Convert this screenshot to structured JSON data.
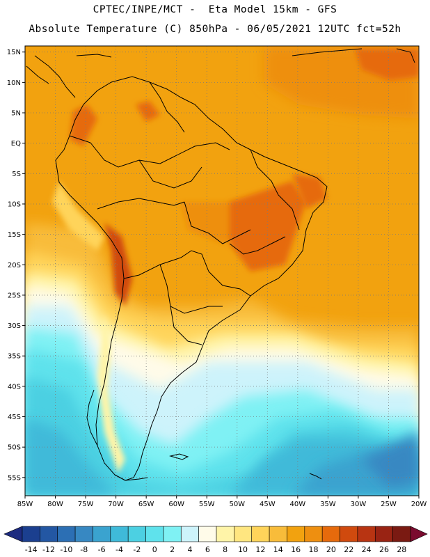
{
  "header": {
    "line1": "CPTEC/INPE/MCT -  Eta Model 15km - GFS",
    "line2": "Absolute Temperature (C) 850hPa - 06/05/2021 12UTC fct=52h"
  },
  "map": {
    "lat_labels": [
      "15N",
      "10N",
      "5N",
      "EQ",
      "5S",
      "10S",
      "15S",
      "20S",
      "25S",
      "30S",
      "35S",
      "40S",
      "45S",
      "50S",
      "55S"
    ],
    "lon_labels": [
      "85W",
      "80W",
      "75W",
      "70W",
      "65W",
      "60W",
      "55W",
      "50W",
      "45W",
      "40W",
      "35W",
      "30W",
      "25W",
      "20W"
    ],
    "lon_range": [
      -85,
      -20
    ],
    "lat_range": [
      -58,
      16
    ]
  },
  "colorbar": {
    "labels": [
      "-14",
      "-12",
      "-10",
      "-8",
      "-6",
      "-4",
      "-2",
      "0",
      "2",
      "4",
      "6",
      "8",
      "10",
      "12",
      "14",
      "16",
      "18",
      "20",
      "22",
      "24",
      "26",
      "28"
    ],
    "colors": [
      "#1b3f8f",
      "#2357a3",
      "#2c6fb4",
      "#3788c2",
      "#3aa3cf",
      "#3fbad9",
      "#4cd0e2",
      "#5fe2ec",
      "#7ff1f4",
      "#cdf3fb",
      "#fffbe9",
      "#fff4a8",
      "#ffe680",
      "#ffd45a",
      "#f8bc3a",
      "#f2a20f",
      "#ee8f10",
      "#e66a0c",
      "#d04a0e",
      "#b83412",
      "#992313",
      "#7a1a12"
    ],
    "left_cap": "#1d2b80",
    "right_cap": "#7a0b2f"
  }
}
